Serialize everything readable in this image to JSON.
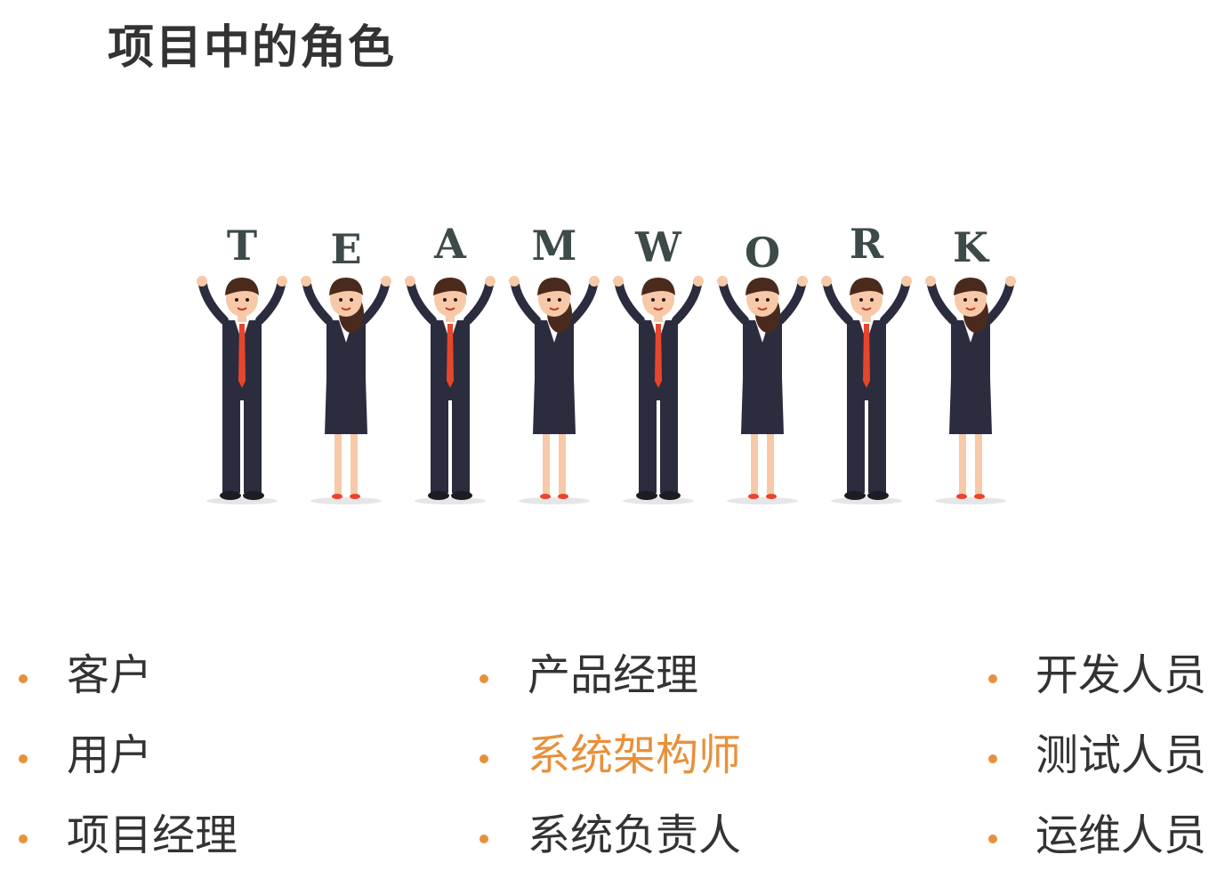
{
  "title": "项目中的角色",
  "banner": {
    "letters": [
      "T",
      "E",
      "A",
      "M",
      "W",
      "O",
      "R",
      "K"
    ]
  },
  "roles": {
    "col1": [
      "客户",
      "用户",
      "项目经理"
    ],
    "col2": [
      "产品经理",
      "系统架构师",
      "系统负责人"
    ],
    "col3": [
      "开发人员",
      "测试人员",
      "运维人员"
    ]
  },
  "highlighted_role": "系统架构师",
  "colors": {
    "accent": "#e8903a",
    "text": "#333333",
    "suit": "#2b2d3e",
    "tie": "#e8452c",
    "skin": "#f7c9a9",
    "hair": "#4a2a1c"
  }
}
